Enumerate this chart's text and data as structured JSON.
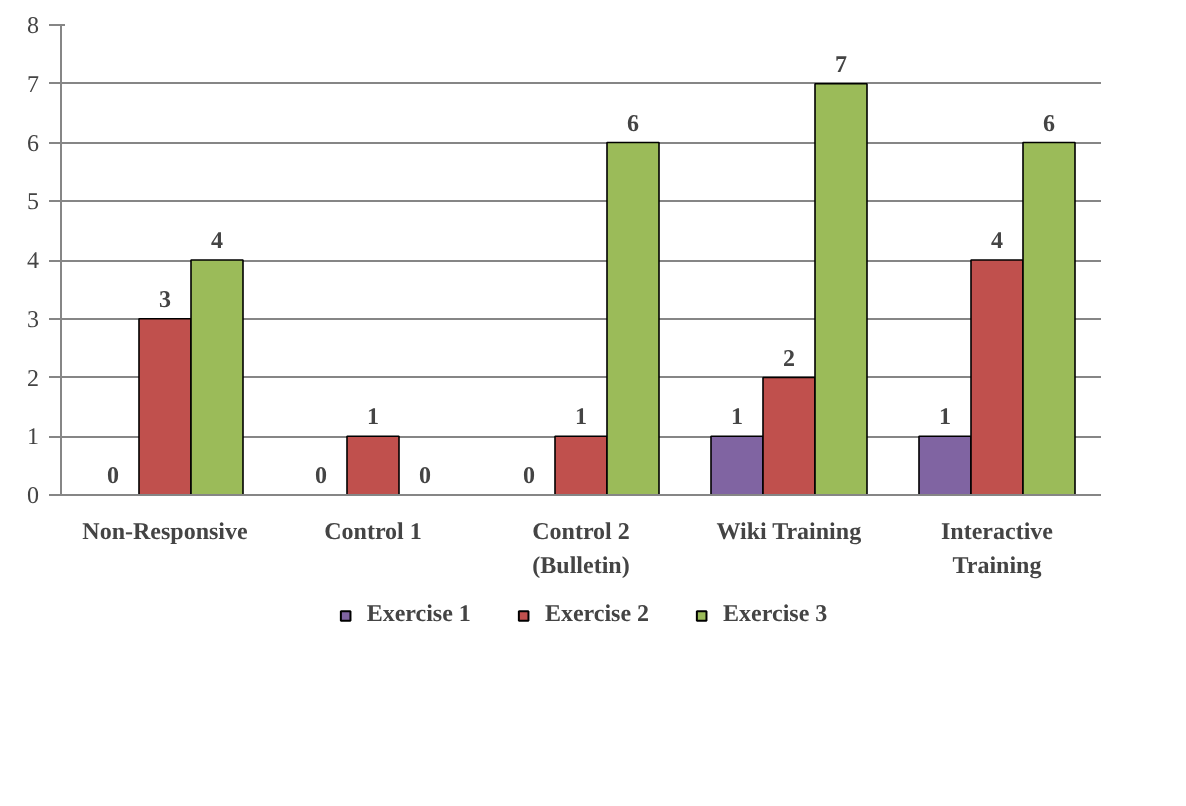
{
  "chart_data": {
    "type": "bar",
    "categories": [
      "Non-Responsive",
      "Control 1",
      "Control 2\n(Bulletin)",
      "Wiki Training",
      "Interactive\nTraining"
    ],
    "series": [
      {
        "name": "Exercise 1",
        "color": "#8064a2",
        "values": [
          0,
          0,
          0,
          1,
          1
        ]
      },
      {
        "name": "Exercise 2",
        "color": "#c0504d",
        "values": [
          3,
          1,
          1,
          2,
          4
        ]
      },
      {
        "name": "Exercise 3",
        "color": "#9bbb59",
        "values": [
          4,
          0,
          6,
          7,
          6
        ]
      }
    ],
    "ylim": [
      0,
      8
    ],
    "yticks": [
      0,
      1,
      2,
      3,
      4,
      5,
      6,
      7,
      8
    ],
    "grid": "y",
    "legend": "bottom",
    "data_labels": true
  }
}
